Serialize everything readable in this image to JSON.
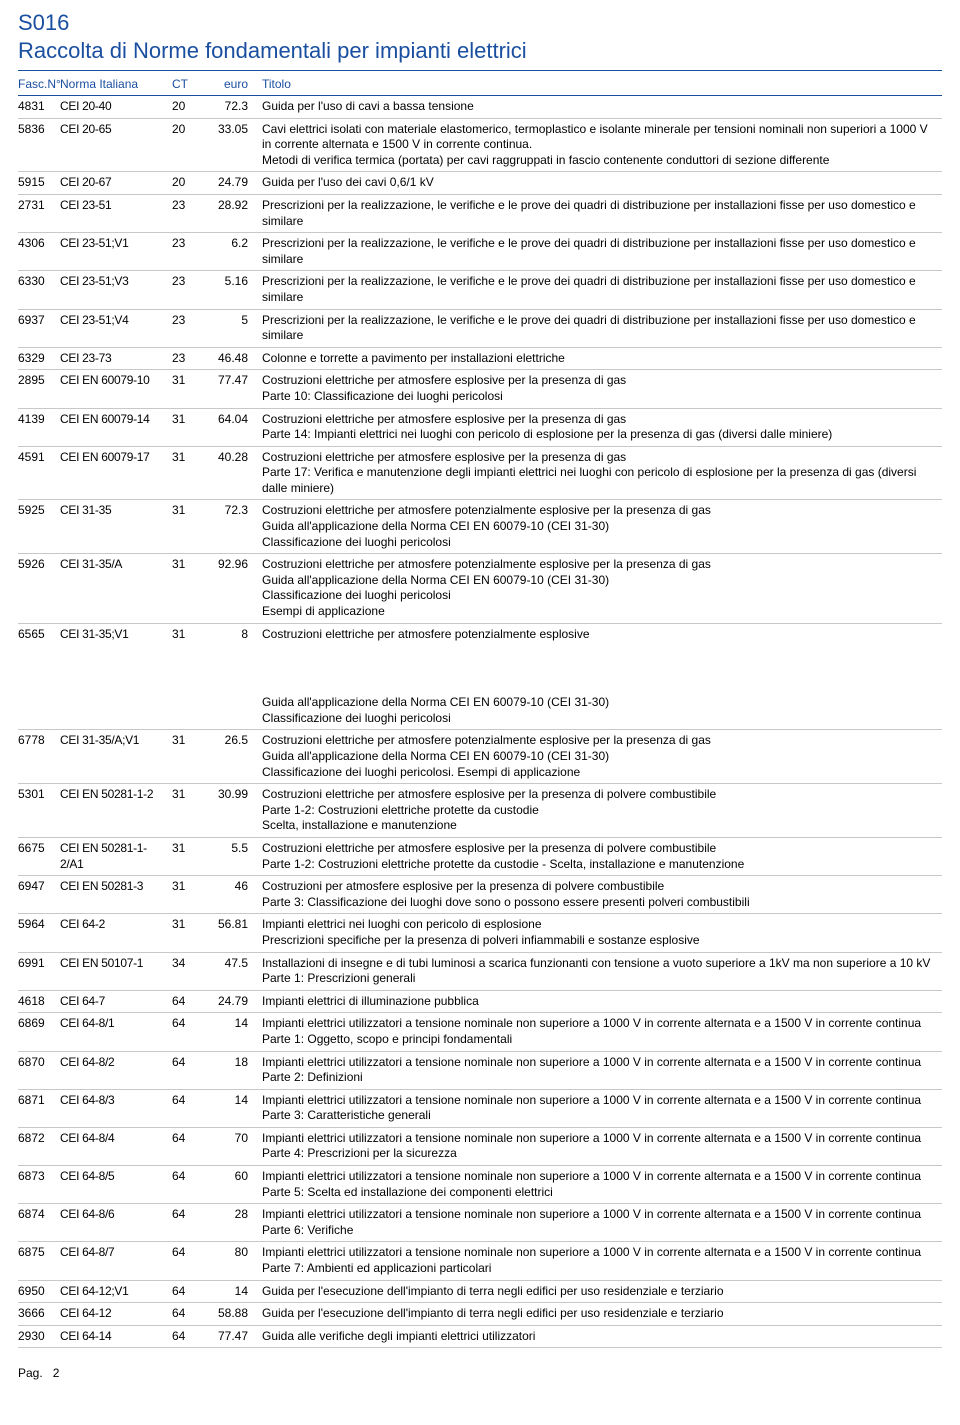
{
  "header": {
    "code": "S016",
    "title": "Raccolta di Norme fondamentali per impianti elettrici"
  },
  "colors": {
    "accent": "#1a4fa0",
    "text": "#000000",
    "rule": "#c8c8c8",
    "background": "#ffffff"
  },
  "columns": {
    "fasc": "Fasc.N°",
    "norma": "Norma Italiana",
    "ct": "CT",
    "euro": "euro",
    "titolo": "Titolo"
  },
  "rows": [
    {
      "fasc": "4831",
      "norma": "CEI 20-40",
      "ct": "20",
      "euro": "72.3",
      "titolo": "Guida per l'uso di cavi a bassa tensione"
    },
    {
      "fasc": "5836",
      "norma": "CEI 20-65",
      "ct": "20",
      "euro": "33.05",
      "titolo": "Cavi elettrici isolati con materiale elastomerico, termoplastico e isolante minerale per tensioni nominali non superiori a 1000 V in corrente alternata e 1500 V in corrente continua.\nMetodi di verifica termica (portata) per cavi raggruppati in fascio contenente conduttori di sezione differente"
    },
    {
      "fasc": "5915",
      "norma": "CEI 20-67",
      "ct": "20",
      "euro": "24.79",
      "titolo": "Guida per l'uso dei cavi 0,6/1 kV"
    },
    {
      "fasc": "2731",
      "norma": "CEI 23-51",
      "ct": "23",
      "euro": "28.92",
      "titolo": "Prescrizioni per la realizzazione, le verifiche e le prove dei quadri di distribuzione per installazioni fisse per uso domestico e similare"
    },
    {
      "fasc": "4306",
      "norma": "CEI 23-51;V1",
      "ct": "23",
      "euro": "6.2",
      "titolo": "Prescrizioni per la realizzazione, le verifiche e le prove dei quadri di distribuzione per installazioni fisse per uso domestico e similare"
    },
    {
      "fasc": "6330",
      "norma": "CEI 23-51;V3",
      "ct": "23",
      "euro": "5.16",
      "titolo": "Prescrizioni per la realizzazione, le verifiche e le prove dei quadri di distribuzione per installazioni fisse per uso domestico e similare"
    },
    {
      "fasc": "6937",
      "norma": "CEI 23-51;V4",
      "ct": "23",
      "euro": "5",
      "titolo": "Prescrizioni per la realizzazione, le verifiche e le prove dei quadri di distribuzione per installazioni fisse per uso domestico e similare"
    },
    {
      "fasc": "6329",
      "norma": "CEI 23-73",
      "ct": "23",
      "euro": "46.48",
      "titolo": "Colonne e torrette a pavimento per installazioni elettriche"
    },
    {
      "fasc": "2895",
      "norma": "CEI EN 60079-10",
      "ct": "31",
      "euro": "77.47",
      "titolo": "Costruzioni elettriche per atmosfere esplosive per la presenza di gas\nParte 10: Classificazione dei luoghi pericolosi"
    },
    {
      "fasc": "4139",
      "norma": "CEI EN 60079-14",
      "ct": "31",
      "euro": "64.04",
      "titolo": "Costruzioni elettriche per atmosfere esplosive per la presenza di gas\nParte 14: Impianti elettrici nei luoghi con pericolo di esplosione per la presenza di gas (diversi dalle miniere)"
    },
    {
      "fasc": "4591",
      "norma": "CEI EN 60079-17",
      "ct": "31",
      "euro": "40.28",
      "titolo": "Costruzioni elettriche per atmosfere esplosive per la presenza di gas\nParte 17: Verifica e manutenzione degli impianti elettrici nei luoghi con pericolo di esplosione per la presenza di gas (diversi dalle miniere)"
    },
    {
      "fasc": "5925",
      "norma": "CEI 31-35",
      "ct": "31",
      "euro": "72.3",
      "titolo": "Costruzioni elettriche per atmosfere potenzialmente esplosive per la presenza di gas\nGuida all'applicazione della Norma CEI EN 60079-10 (CEI 31-30)\nClassificazione dei luoghi pericolosi"
    },
    {
      "fasc": "5926",
      "norma": "CEI 31-35/A",
      "ct": "31",
      "euro": "92.96",
      "titolo": "Costruzioni elettriche per atmosfere potenzialmente esplosive per la presenza di gas\nGuida all'applicazione della Norma CEI EN 60079-10 (CEI 31-30)\nClassificazione dei luoghi pericolosi\nEsempi di applicazione"
    },
    {
      "fasc": "6565",
      "norma": "CEI 31-35;V1",
      "ct": "31",
      "euro": "8",
      "titolo": "Costruzioni elettriche per atmosfere potenzialmente esplosive"
    },
    {
      "spacer": true,
      "titolo": "Guida all'applicazione della Norma CEI EN 60079-10 (CEI 31-30)\nClassificazione dei luoghi pericolosi"
    },
    {
      "fasc": "6778",
      "norma": "CEI 31-35/A;V1",
      "ct": "31",
      "euro": "26.5",
      "titolo": "Costruzioni elettriche per atmosfere potenzialmente esplosive per la presenza di gas\nGuida all'applicazione della Norma CEI EN 60079-10 (CEI 31-30)\nClassificazione dei luoghi pericolosi. Esempi di applicazione"
    },
    {
      "fasc": "5301",
      "norma": "CEI EN 50281-1-2",
      "ct": "31",
      "euro": "30.99",
      "titolo": "Costruzioni elettriche per atmosfere esplosive per la presenza di polvere combustibile\nParte 1-2: Costruzioni elettriche protette da custodie\nScelta, installazione e manutenzione"
    },
    {
      "fasc": "6675",
      "norma": "CEI EN 50281-1-2/A1",
      "ct": "31",
      "euro": "5.5",
      "titolo": "Costruzioni elettriche per atmosfere esplosive per la presenza di polvere combustibile\nParte 1-2: Costruzioni elettriche protette da custodie - Scelta, installazione e manutenzione"
    },
    {
      "fasc": "6947",
      "norma": "CEI EN 50281-3",
      "ct": "31",
      "euro": "46",
      "titolo": "Costruzioni per atmosfere esplosive per la presenza di polvere combustibile\nParte 3: Classificazione dei luoghi dove sono o possono essere presenti polveri combustibili"
    },
    {
      "fasc": "5964",
      "norma": "CEI 64-2",
      "ct": "31",
      "euro": "56.81",
      "titolo": "Impianti elettrici nei luoghi con pericolo di esplosione\nPrescrizioni specifiche per la presenza di polveri infiammabili e sostanze esplosive"
    },
    {
      "fasc": "6991",
      "norma": "CEI EN 50107-1",
      "ct": "34",
      "euro": "47.5",
      "titolo": "Installazioni di insegne e di tubi luminosi a scarica funzionanti con tensione a vuoto superiore a 1kV ma non superiore a 10 kV\nParte 1: Prescrizioni generali"
    },
    {
      "fasc": "4618",
      "norma": "CEI 64-7",
      "ct": "64",
      "euro": "24.79",
      "titolo": "Impianti elettrici di illuminazione pubblica"
    },
    {
      "fasc": "6869",
      "norma": "CEI 64-8/1",
      "ct": "64",
      "euro": "14",
      "titolo": "Impianti elettrici utilizzatori a tensione nominale non superiore a 1000 V in corrente alternata e a 1500 V in corrente continua\nParte 1:  Oggetto, scopo e principi fondamentali"
    },
    {
      "fasc": "6870",
      "norma": "CEI 64-8/2",
      "ct": "64",
      "euro": "18",
      "titolo": "Impianti elettrici utilizzatori a tensione nominale non superiore a 1000 V in corrente alternata e a 1500 V in corrente continua\nParte 2: Definizioni"
    },
    {
      "fasc": "6871",
      "norma": "CEI 64-8/3",
      "ct": "64",
      "euro": "14",
      "titolo": "Impianti elettrici utilizzatori a tensione nominale non superiore a 1000 V in corrente alternata e a 1500 V in corrente continua\nParte 3: Caratteristiche generali"
    },
    {
      "fasc": "6872",
      "norma": "CEI 64-8/4",
      "ct": "64",
      "euro": "70",
      "titolo": "Impianti elettrici utilizzatori a tensione nominale non superiore a 1000 V in corrente alternata e a 1500 V in corrente continua\nParte 4: Prescrizioni per la sicurezza"
    },
    {
      "fasc": "6873",
      "norma": "CEI 64-8/5",
      "ct": "64",
      "euro": "60",
      "titolo": "Impianti elettrici utilizzatori a tensione nominale non superiore a 1000 V in corrente alternata e a 1500 V in corrente continua\nParte 5: Scelta ed installazione dei componenti elettrici"
    },
    {
      "fasc": "6874",
      "norma": "CEI 64-8/6",
      "ct": "64",
      "euro": "28",
      "titolo": "Impianti elettrici utilizzatori a tensione nominale non superiore a 1000 V in corrente alternata e a 1500 V in corrente continua\nParte 6: Verifiche"
    },
    {
      "fasc": "6875",
      "norma": "CEI 64-8/7",
      "ct": "64",
      "euro": "80",
      "titolo": "Impianti elettrici utilizzatori a tensione nominale non superiore a 1000 V in corrente alternata e a 1500 V in corrente continua\nParte 7: Ambienti ed applicazioni particolari"
    },
    {
      "fasc": "6950",
      "norma": "CEI 64-12;V1",
      "ct": "64",
      "euro": "14",
      "titolo": "Guida per l'esecuzione dell'impianto di terra negli edifici per uso residenziale e terziario"
    },
    {
      "fasc": "3666",
      "norma": "CEI 64-12",
      "ct": "64",
      "euro": "58.88",
      "titolo": "Guida per l'esecuzione dell'impianto di terra negli edifici per uso residenziale e terziario"
    },
    {
      "fasc": "2930",
      "norma": "CEI 64-14",
      "ct": "64",
      "euro": "77.47",
      "titolo": "Guida alle verifiche degli impianti elettrici utilizzatori"
    }
  ],
  "footer": {
    "page_label": "Pag.",
    "page_number": "2"
  }
}
